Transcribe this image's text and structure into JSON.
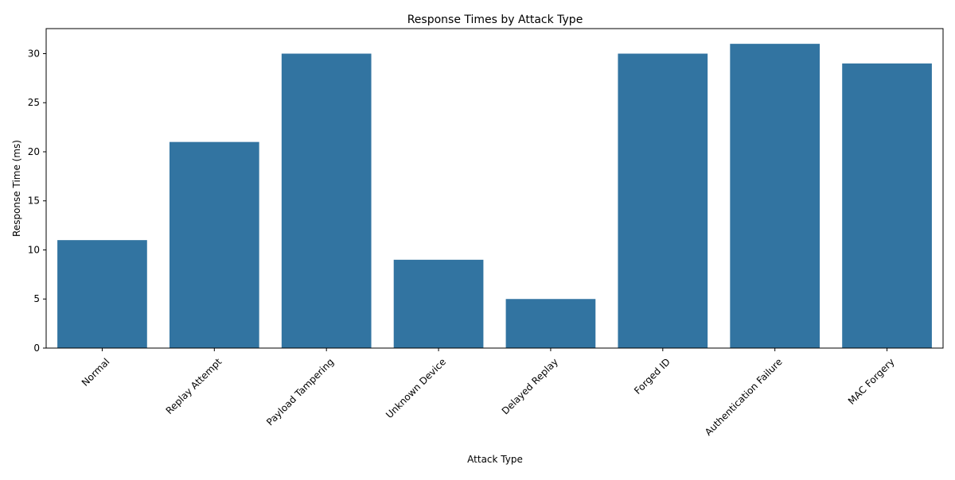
{
  "chart_data": {
    "type": "bar",
    "title": "Response Times by Attack Type",
    "xlabel": "Attack Type",
    "ylabel": "Response Time (ms)",
    "categories": [
      "Normal",
      "Replay Attempt",
      "Payload Tampering",
      "Unknown Device",
      "Delayed Replay",
      "Forged ID",
      "Authentication Failure",
      "MAC Forgery"
    ],
    "values": [
      11,
      21,
      30,
      9,
      5,
      30,
      31,
      29
    ],
    "yticks": [
      0,
      5,
      10,
      15,
      20,
      25,
      30
    ],
    "ylim": [
      0,
      32.55
    ],
    "bar_color": "#3274a1",
    "grid": false,
    "legend": "none"
  }
}
